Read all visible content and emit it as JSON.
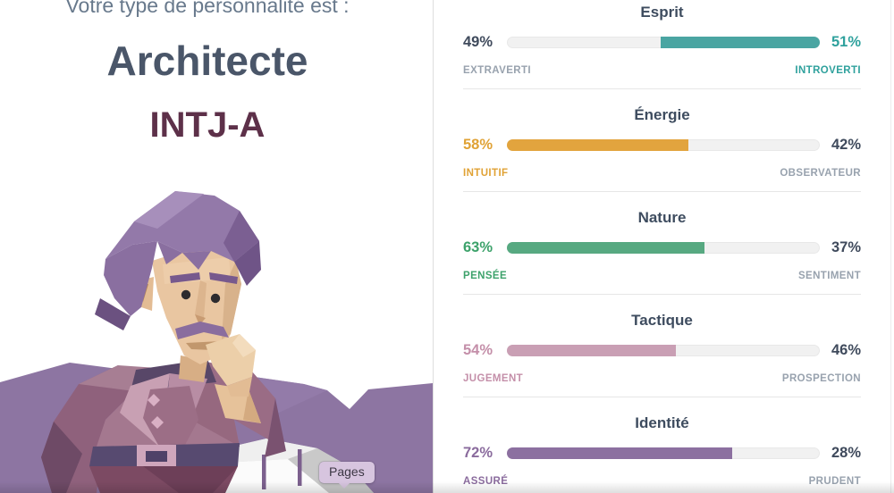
{
  "result_panel": {
    "intro": "Votre type de personnalité est :",
    "type_name": "Architecte",
    "type_code": "INTJ-A"
  },
  "os_tooltip": {
    "label": "Pages"
  },
  "traits": [
    {
      "title": "Esprit",
      "left_pct": "49%",
      "right_pct": "51%",
      "left_label": "EXTRAVERTI",
      "right_label": "INTROVERTI",
      "winner": "right",
      "fill_percent": 51,
      "bar_color": "#4aa5a2",
      "text_color": "#2fa19d"
    },
    {
      "title": "Énergie",
      "left_pct": "58%",
      "right_pct": "42%",
      "left_label": "INTUITIF",
      "right_label": "OBSERVATEUR",
      "winner": "left",
      "fill_percent": 58,
      "bar_color": "#e2a43e",
      "text_color": "#e0a235"
    },
    {
      "title": "Nature",
      "left_pct": "63%",
      "right_pct": "37%",
      "left_label": "PENSÉE",
      "right_label": "SENTIMENT",
      "winner": "left",
      "fill_percent": 63,
      "bar_color": "#57a981",
      "text_color": "#3da26b"
    },
    {
      "title": "Tactique",
      "left_pct": "54%",
      "right_pct": "46%",
      "left_label": "JUGEMENT",
      "right_label": "PROSPECTION",
      "winner": "left",
      "fill_percent": 54,
      "bar_color": "#c99fb4",
      "text_color": "#c48fa9"
    },
    {
      "title": "Identité",
      "left_pct": "72%",
      "right_pct": "28%",
      "left_label": "ASSURÉ",
      "right_label": "PRUDENT",
      "winner": "left",
      "fill_percent": 72,
      "bar_color": "#8c70a0",
      "text_color": "#8a6b9d"
    }
  ],
  "colors": {
    "neutral_pct": "#3f4a5c",
    "muted_label": "#98a2ae",
    "section_title": "#3e4c5f",
    "intro_text": "#68798c",
    "type_name": "#4a5669",
    "type_code": "#5d3049",
    "track": "#f1f1f1",
    "divider": "#e6e6e6",
    "tooltip_bg": "#d7c5df"
  }
}
